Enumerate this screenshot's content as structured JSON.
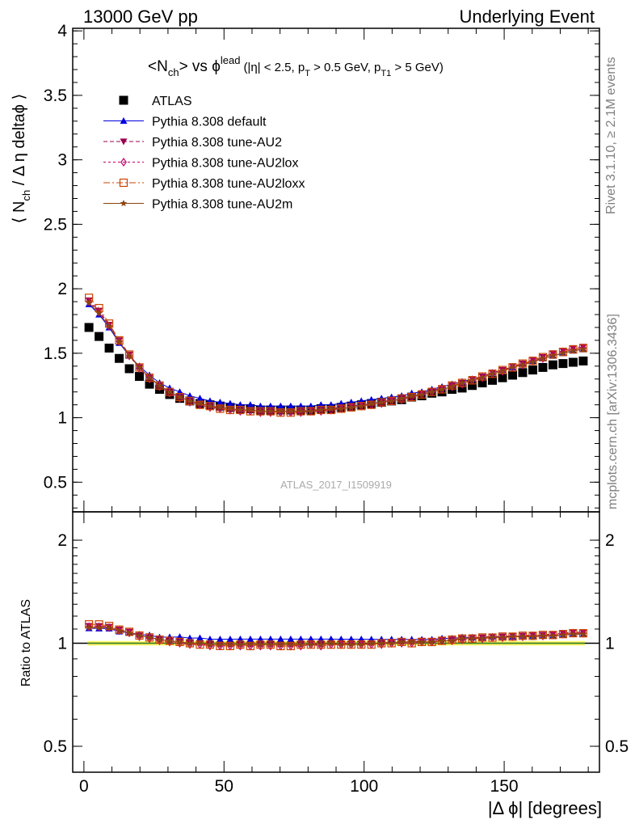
{
  "header": {
    "left": "13000 GeV pp",
    "right": "Underlying Event"
  },
  "side_labels": {
    "rivet": "Rivet 3.1.10, ≥ 2.1M events",
    "mcplots": "mcplots.cern.ch [arXiv:1306.3436]"
  },
  "watermark": "ATLAS_2017_I1509919",
  "colors": {
    "ATLAS": "#000000",
    "default": "#0000dd",
    "AU2": "#99004d",
    "AU2lox": "#c0006e",
    "AU2loxx": "#cc4400",
    "AU2m": "#8b4513",
    "band": "#ffff66",
    "ratio_line": "#2e8b2e"
  },
  "chart_data": [
    {
      "type": "scatter",
      "panel": "main",
      "title": {
        "pre": "<N",
        "sub1": "ch",
        "mid": "> vs ϕ",
        "sup": "lead",
        "paren1": "(|η| < 2.5, p",
        "sub2": "T",
        "paren2": " > 0.5 GeV, p",
        "sub3": "T1",
        "paren3": " > 5 GeV)"
      },
      "ylabel": {
        "pre": "⟨ N",
        "sub": "ch",
        "post": " / Δ η deltaϕ ⟩"
      },
      "xlim": [
        -4,
        184
      ],
      "ylim": [
        0.27,
        4.02
      ],
      "yticks": [
        "0.5",
        "1",
        "1.5",
        "2",
        "2.5",
        "3",
        "3.5",
        "4"
      ],
      "x": [
        1.8,
        5.4,
        9,
        12.6,
        16.2,
        19.8,
        23.4,
        27,
        30.6,
        34.2,
        37.8,
        41.4,
        45,
        48.6,
        52.2,
        55.8,
        59.4,
        63,
        66.6,
        70.2,
        73.8,
        77.4,
        81,
        84.6,
        88.2,
        91.8,
        95.4,
        99,
        102.6,
        106.2,
        109.8,
        113.4,
        117,
        120.6,
        124.2,
        127.8,
        131.4,
        135,
        138.6,
        142.2,
        145.8,
        149.4,
        153,
        156.6,
        160.2,
        163.8,
        167.4,
        171,
        174.6,
        178.2
      ],
      "series": [
        {
          "key": "ATLAS",
          "name": "ATLAS",
          "marker": "square",
          "dash": "",
          "values": [
            1.7,
            1.63,
            1.54,
            1.46,
            1.38,
            1.32,
            1.26,
            1.22,
            1.18,
            1.15,
            1.13,
            1.11,
            1.1,
            1.09,
            1.08,
            1.07,
            1.07,
            1.06,
            1.06,
            1.06,
            1.06,
            1.06,
            1.06,
            1.07,
            1.07,
            1.08,
            1.09,
            1.1,
            1.11,
            1.12,
            1.13,
            1.14,
            1.16,
            1.17,
            1.19,
            1.2,
            1.22,
            1.23,
            1.25,
            1.27,
            1.29,
            1.31,
            1.33,
            1.35,
            1.37,
            1.39,
            1.41,
            1.42,
            1.43,
            1.44
          ]
        },
        {
          "key": "default",
          "name": "Pythia 8.308 default",
          "marker": "triangle-up",
          "dash": "",
          "values": [
            1.88,
            1.8,
            1.7,
            1.58,
            1.48,
            1.4,
            1.33,
            1.27,
            1.23,
            1.2,
            1.17,
            1.15,
            1.13,
            1.12,
            1.11,
            1.1,
            1.1,
            1.09,
            1.09,
            1.09,
            1.09,
            1.09,
            1.09,
            1.1,
            1.1,
            1.11,
            1.12,
            1.13,
            1.14,
            1.15,
            1.16,
            1.17,
            1.19,
            1.2,
            1.22,
            1.24,
            1.26,
            1.28,
            1.3,
            1.32,
            1.35,
            1.37,
            1.39,
            1.42,
            1.44,
            1.46,
            1.48,
            1.5,
            1.52,
            1.53
          ]
        },
        {
          "key": "AU2",
          "name": "Pythia 8.308 tune-AU2",
          "marker": "triangle-down",
          "dash": "5,3",
          "values": [
            1.91,
            1.83,
            1.72,
            1.6,
            1.49,
            1.39,
            1.31,
            1.25,
            1.2,
            1.16,
            1.13,
            1.11,
            1.09,
            1.08,
            1.07,
            1.06,
            1.06,
            1.05,
            1.05,
            1.05,
            1.05,
            1.05,
            1.06,
            1.06,
            1.07,
            1.08,
            1.09,
            1.1,
            1.11,
            1.12,
            1.14,
            1.15,
            1.17,
            1.19,
            1.21,
            1.23,
            1.25,
            1.27,
            1.3,
            1.32,
            1.35,
            1.37,
            1.4,
            1.42,
            1.45,
            1.47,
            1.5,
            1.52,
            1.54,
            1.55
          ]
        },
        {
          "key": "AU2lox",
          "name": "Pythia 8.308 tune-AU2lox",
          "marker": "diamond",
          "dash": "3,3",
          "values": [
            1.9,
            1.82,
            1.71,
            1.59,
            1.48,
            1.38,
            1.3,
            1.24,
            1.19,
            1.15,
            1.12,
            1.1,
            1.08,
            1.07,
            1.06,
            1.05,
            1.05,
            1.04,
            1.04,
            1.04,
            1.04,
            1.04,
            1.05,
            1.05,
            1.06,
            1.07,
            1.08,
            1.09,
            1.1,
            1.11,
            1.13,
            1.14,
            1.16,
            1.18,
            1.2,
            1.22,
            1.24,
            1.26,
            1.29,
            1.31,
            1.34,
            1.36,
            1.39,
            1.41,
            1.44,
            1.46,
            1.49,
            1.51,
            1.53,
            1.54
          ]
        },
        {
          "key": "AU2loxx",
          "name": "Pythia 8.308 tune-AU2loxx",
          "marker": "square-open",
          "dash": "8,3,2,3",
          "values": [
            1.93,
            1.85,
            1.73,
            1.6,
            1.49,
            1.39,
            1.31,
            1.25,
            1.2,
            1.16,
            1.13,
            1.1,
            1.09,
            1.07,
            1.06,
            1.06,
            1.05,
            1.05,
            1.05,
            1.04,
            1.04,
            1.05,
            1.05,
            1.06,
            1.06,
            1.07,
            1.08,
            1.09,
            1.1,
            1.12,
            1.13,
            1.15,
            1.16,
            1.18,
            1.2,
            1.22,
            1.25,
            1.27,
            1.29,
            1.32,
            1.34,
            1.37,
            1.39,
            1.42,
            1.44,
            1.47,
            1.49,
            1.51,
            1.53,
            1.54
          ]
        },
        {
          "key": "AU2m",
          "name": "Pythia 8.308 tune-AU2m",
          "marker": "star",
          "dash": "",
          "values": [
            1.89,
            1.81,
            1.71,
            1.59,
            1.48,
            1.39,
            1.31,
            1.25,
            1.2,
            1.16,
            1.13,
            1.11,
            1.09,
            1.08,
            1.07,
            1.06,
            1.06,
            1.05,
            1.05,
            1.05,
            1.05,
            1.05,
            1.05,
            1.06,
            1.07,
            1.07,
            1.08,
            1.09,
            1.11,
            1.12,
            1.13,
            1.15,
            1.17,
            1.18,
            1.2,
            1.22,
            1.24,
            1.27,
            1.29,
            1.31,
            1.34,
            1.36,
            1.39,
            1.41,
            1.43,
            1.46,
            1.48,
            1.5,
            1.52,
            1.53
          ]
        }
      ]
    },
    {
      "type": "scatter",
      "panel": "ratio",
      "ylabel": "Ratio to ATLAS",
      "xlabel": "|Δ ϕ| [degrees]",
      "xlim": [
        -4,
        184
      ],
      "ylim": [
        0.42,
        2.42
      ],
      "yscale": "log",
      "yticks": [
        "0.5",
        "1",
        "2"
      ],
      "xticks": [
        "0",
        "50",
        "100",
        "150"
      ],
      "reference": 1.0,
      "band": [
        0.985,
        1.015
      ],
      "series_ratio": "each MC series divided by ATLAS at the same x"
    }
  ]
}
